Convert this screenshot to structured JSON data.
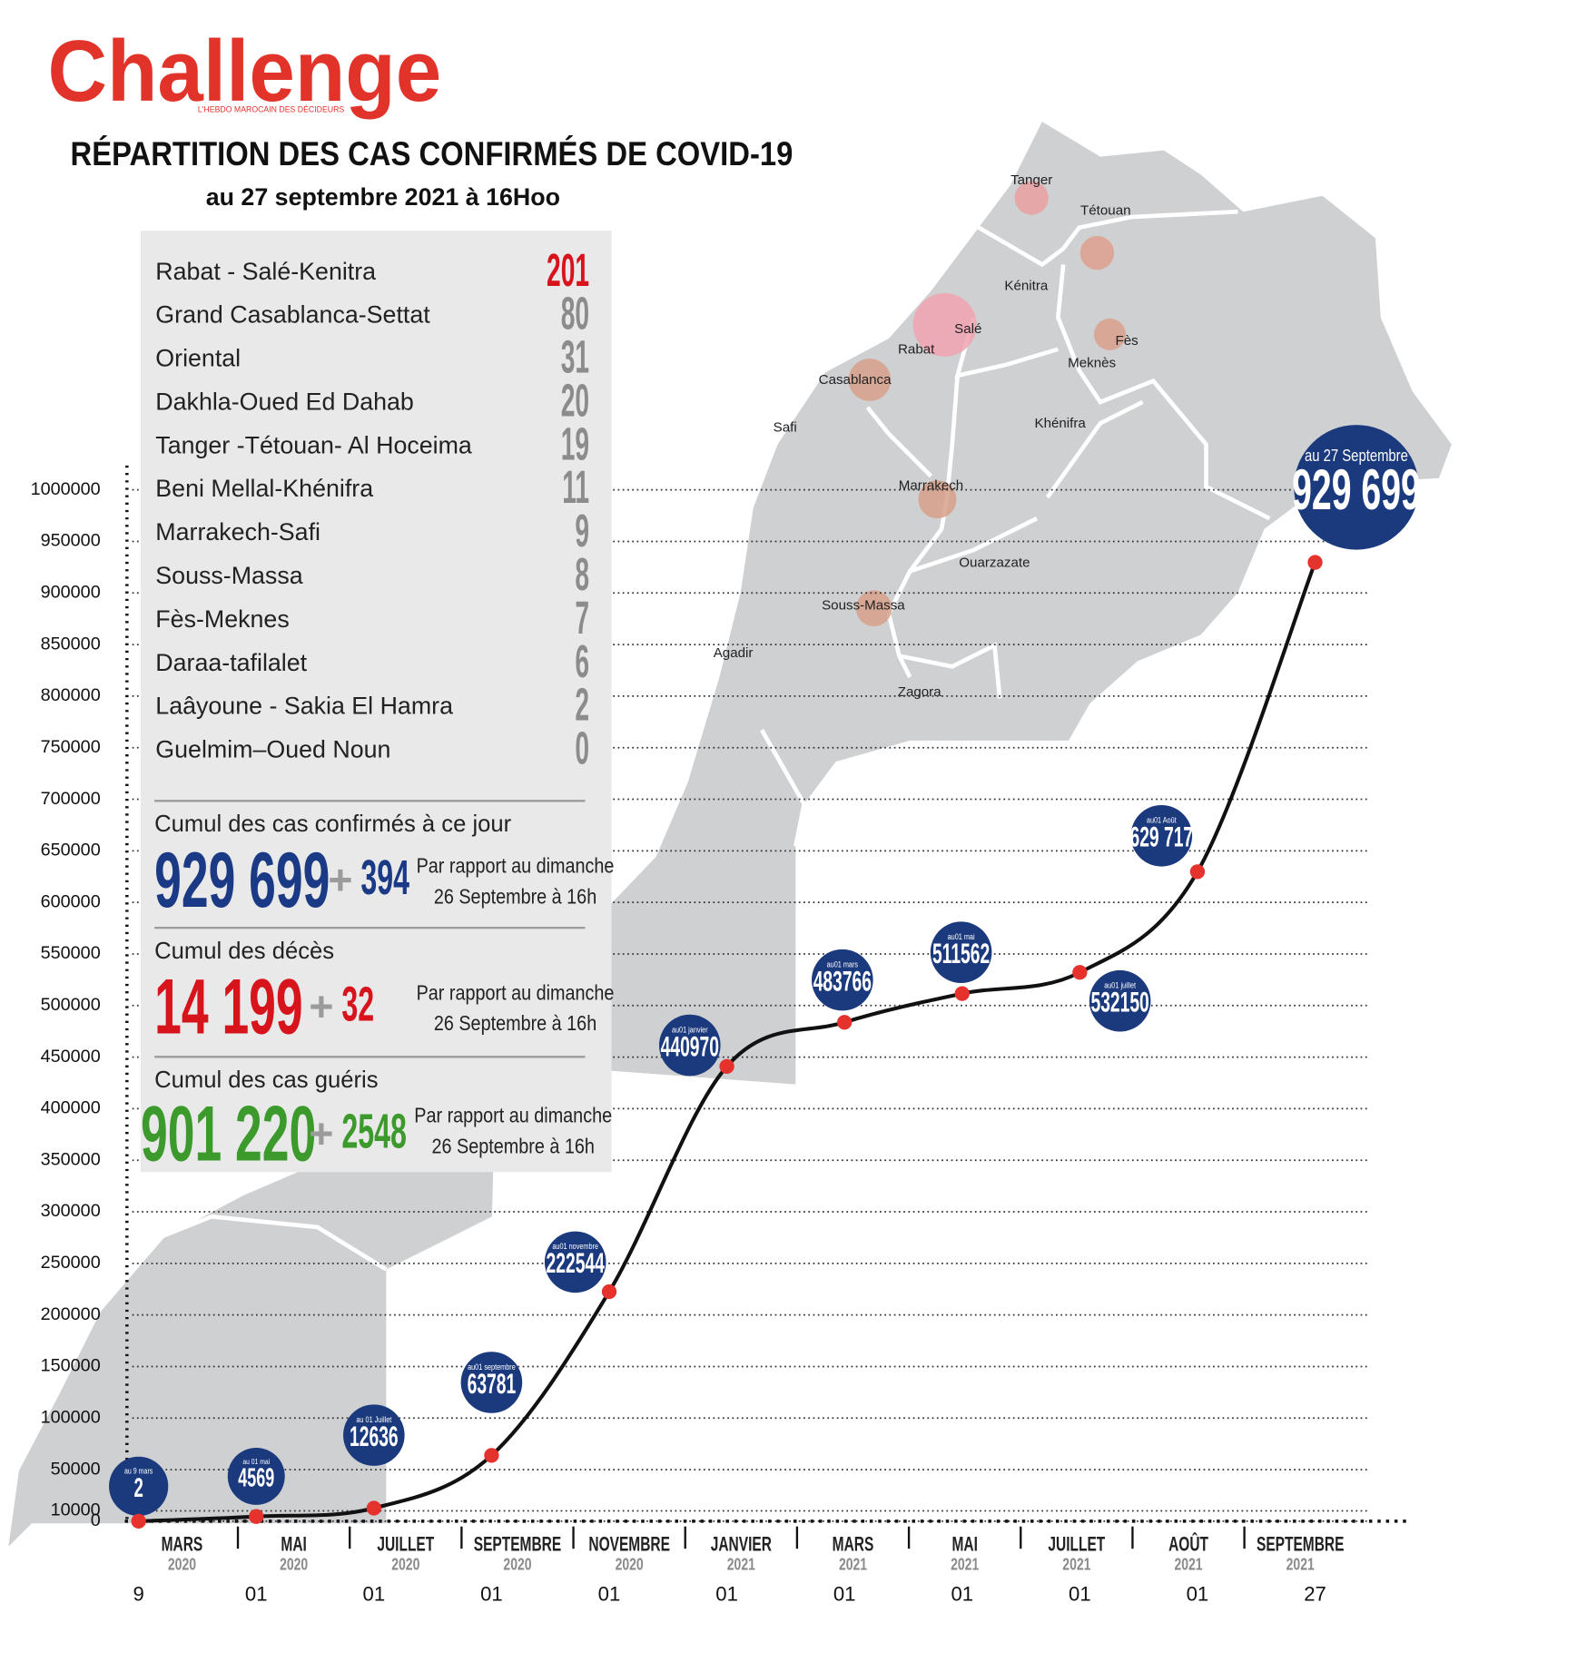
{
  "header": {
    "logo": "Challenge",
    "tagline": "L'HEBDO MAROCAIN DES DÉCIDEURS",
    "title": "RÉPARTITION DES CAS CONFIRMÉS DE COVID-19",
    "subtitle": "au 27 septembre 2021 à 16Hoo"
  },
  "regions": {
    "names": [
      "Rabat - Salé-Kenitra",
      "Grand Casablanca-Settat",
      "Oriental",
      "Dakhla-Oued Ed Dahab",
      "Tanger -Tétouan- Al Hoceima",
      "Beni Mellal-Khénifra",
      "Marrakech-Safi",
      "Souss-Massa",
      "Fès-Meknes",
      "Daraa-tafilalet",
      "Laâyoune - Sakia El Hamra",
      "Guelmim–Oued Noun"
    ],
    "values": [
      201,
      80,
      31,
      20,
      19,
      11,
      9,
      8,
      7,
      6,
      2,
      0
    ],
    "highlight_color": "#d7141c",
    "color": "#8c8c8c"
  },
  "summary": [
    {
      "label": "Cumul des cas confirmés à ce jour",
      "total": "929 699",
      "sign": "+",
      "increase": "394",
      "note": [
        "Par rapport au dimanche",
        "26 Septembre à 16h"
      ],
      "color": "#1b3a86"
    },
    {
      "label": "Cumul des décès",
      "total": "14 199",
      "sign": "+",
      "increase": "32",
      "note": [
        "Par rapport au dimanche",
        "26 Septembre à 16h"
      ],
      "color": "#d7141c"
    },
    {
      "label": "Cumul des cas guéris",
      "total": "901 220",
      "sign": "+",
      "increase": "2548",
      "note": [
        "Par rapport au dimanche",
        "26 Septembre à 16h"
      ],
      "color": "#3c9a2c"
    }
  ],
  "map": {
    "cities": [
      "Tanger",
      "Tétouan",
      "Kénitra",
      "Salé",
      "Rabat",
      "Fès",
      "Meknès",
      "Casablanca",
      "Safi",
      "Khénifra",
      "Marrakech",
      "Ouarzazate",
      "Souss-Massa",
      "Agadir",
      "Zagora"
    ]
  },
  "chart_data": {
    "type": "line",
    "categories": [
      "9",
      "01",
      "01",
      "01",
      "01",
      "01",
      "01",
      "01",
      "01",
      "01",
      "27"
    ],
    "values": [
      2,
      4569,
      12636,
      63781,
      222544,
      440970,
      483766,
      511562,
      532150,
      629717,
      929699
    ],
    "value_labels": [
      "2",
      "4569",
      "12636",
      "63781",
      "222544",
      "440970",
      "483766",
      "511562",
      "532150",
      "629 717",
      "929 699"
    ],
    "point_notes": [
      "au 9 mars",
      "au 01 mai",
      "au 01 Juillet",
      "au01 septembre",
      "au01 novembre",
      "au01 janvier",
      "au01 mars",
      "au01 mai",
      "au01 juillet",
      "au01 Août",
      "au 27 Septembre"
    ],
    "periods": [
      {
        "month": "MARS",
        "year": "2020"
      },
      {
        "month": "MAI",
        "year": "2020"
      },
      {
        "month": "JUILLET",
        "year": "2020"
      },
      {
        "month": "SEPTEMBRE",
        "year": "2020"
      },
      {
        "month": "NOVEMBRE",
        "year": "2020"
      },
      {
        "month": "JANVIER",
        "year": "2021"
      },
      {
        "month": "MARS",
        "year": "2021"
      },
      {
        "month": "MAI",
        "year": "2021"
      },
      {
        "month": "JUILLET",
        "year": "2021"
      },
      {
        "month": "AOÛT",
        "year": "2021"
      },
      {
        "month": "SEPTEMBRE",
        "year": "2021"
      }
    ],
    "ylim": [
      0,
      1000000
    ],
    "yticks": [
      0,
      10000,
      50000,
      100000,
      150000,
      200000,
      250000,
      300000,
      350000,
      400000,
      450000,
      500000,
      550000,
      600000,
      650000,
      700000,
      750000,
      800000,
      850000,
      900000,
      950000,
      1000000
    ],
    "grid": true,
    "color": "#111111",
    "marker_color": "#e5322d",
    "bubble_color": "#1b3a7e"
  }
}
